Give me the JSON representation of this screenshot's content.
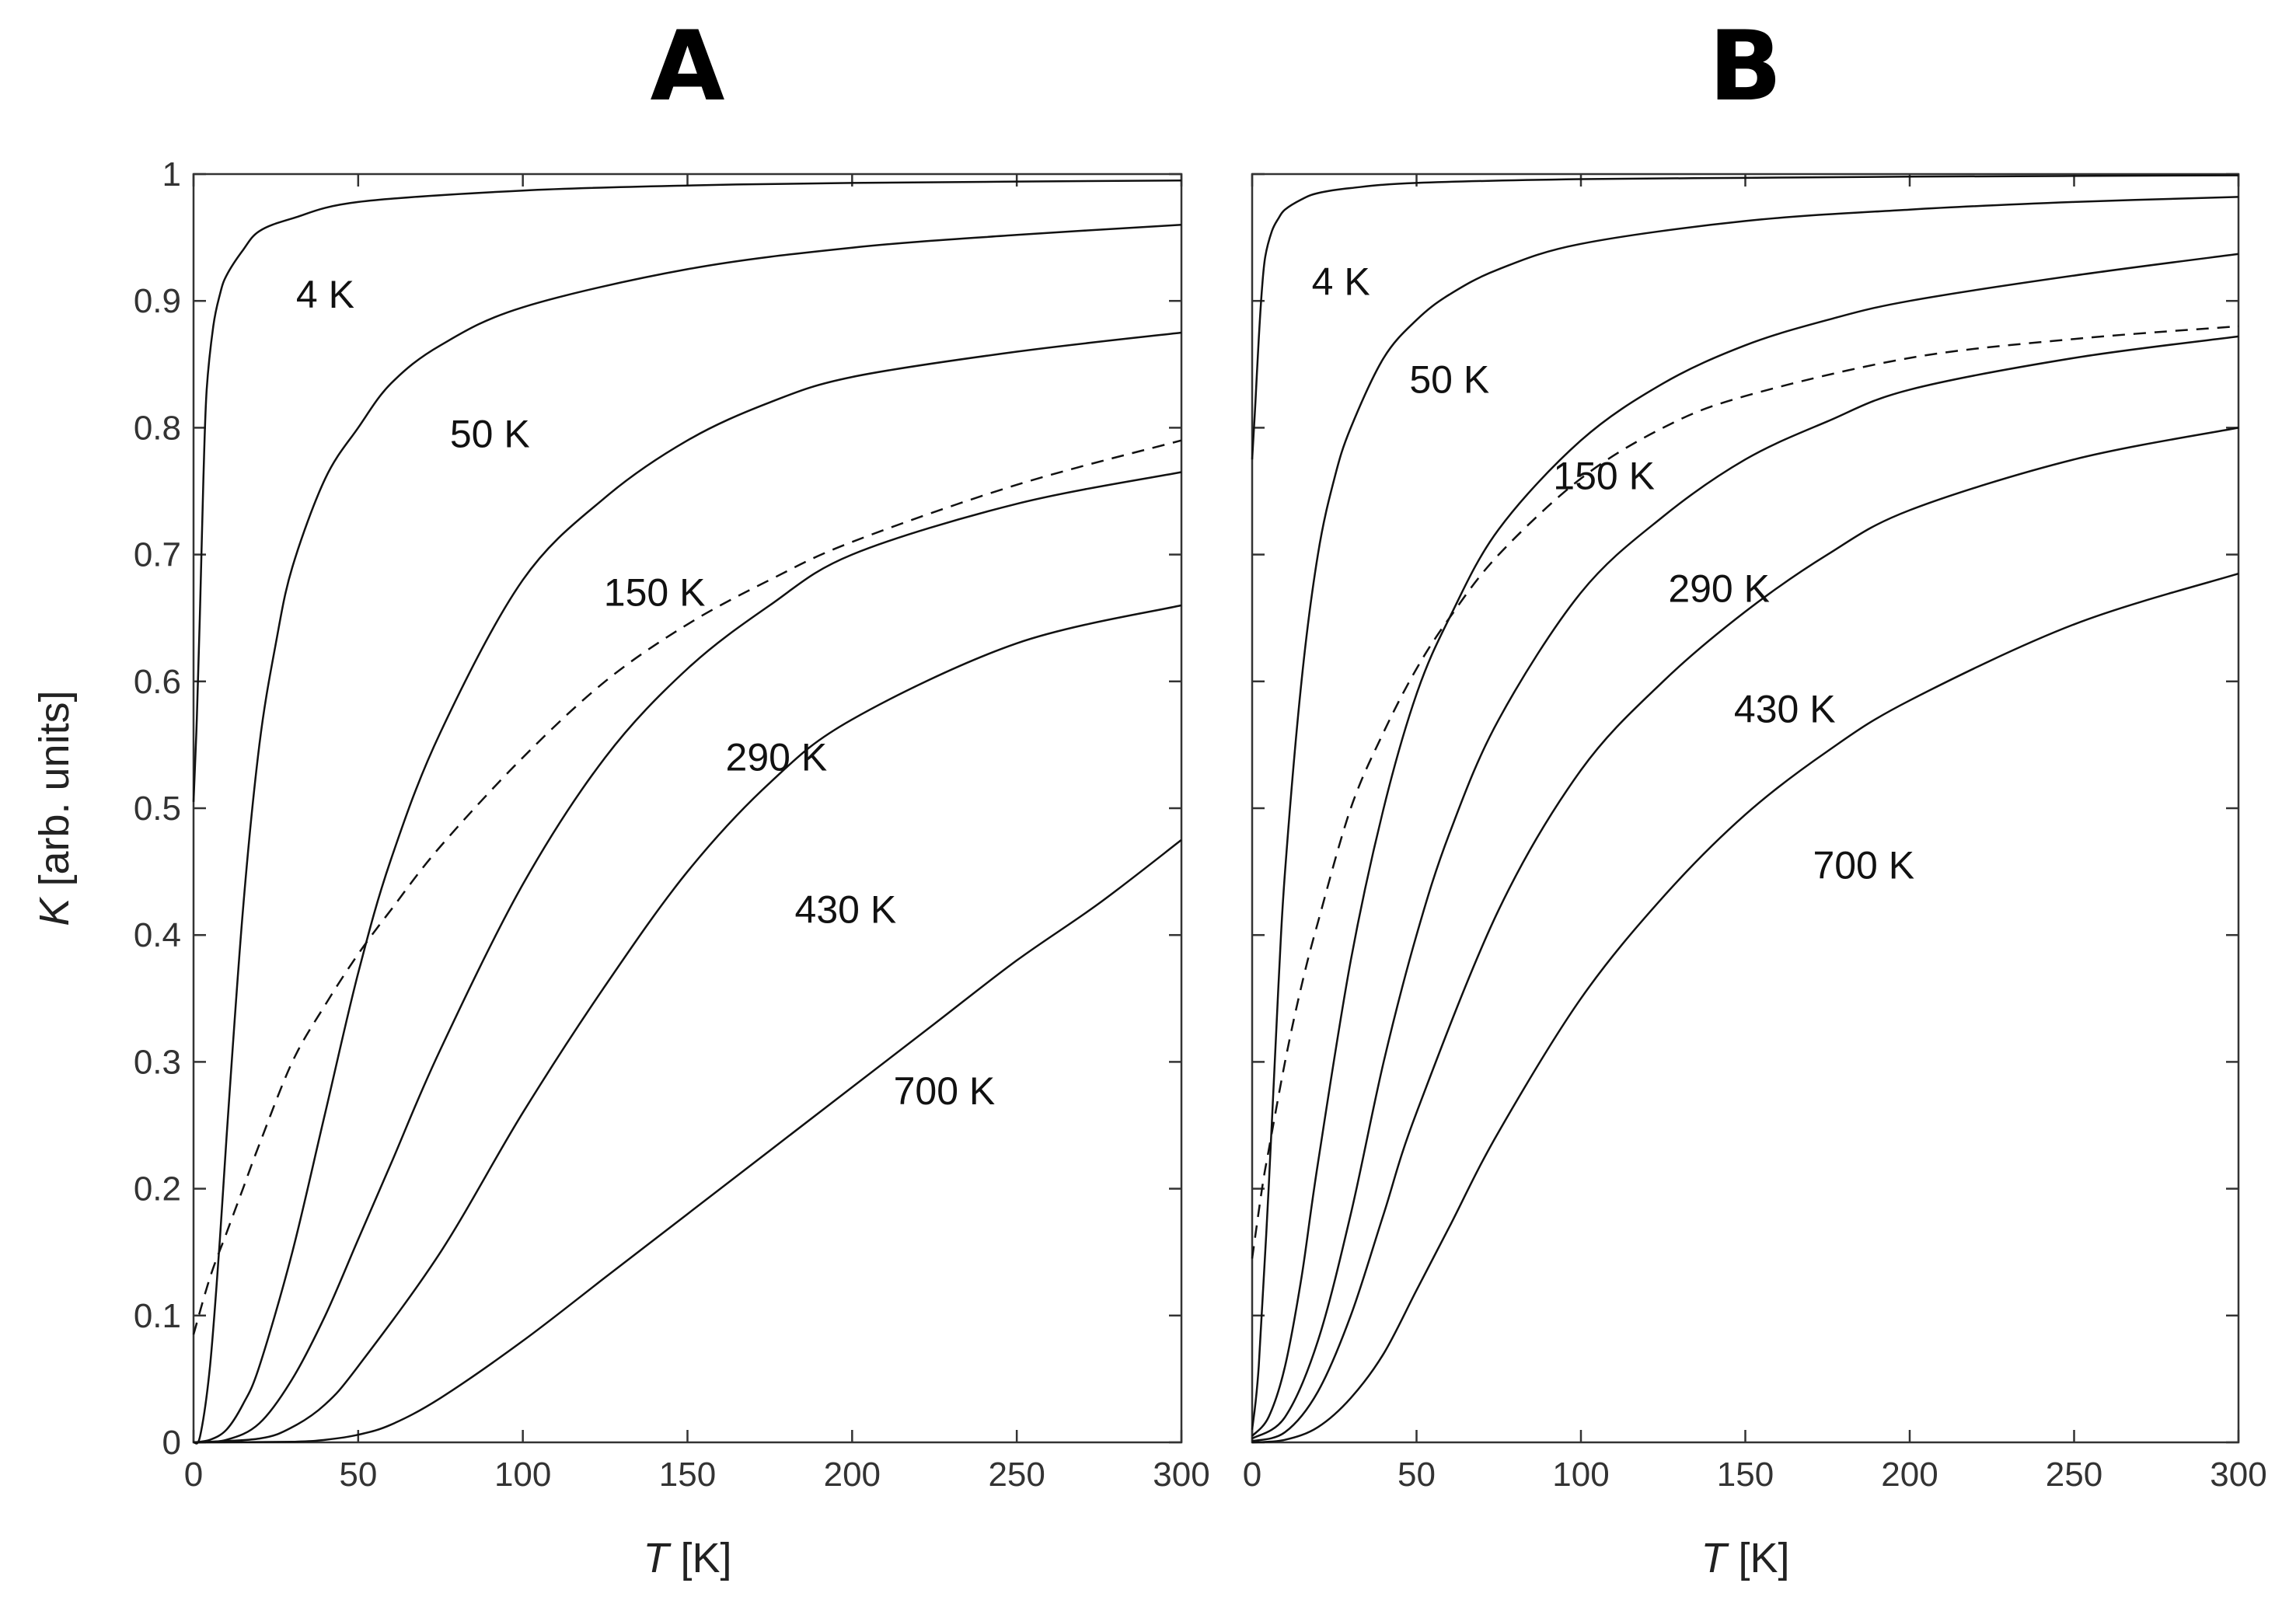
{
  "chart_data": [
    {
      "type": "line",
      "title": "A",
      "xlabel": {
        "var": "T",
        "unit": "[K]"
      },
      "ylabel": {
        "var": "K",
        "unit": "[arb. units]"
      },
      "xlim": [
        0,
        300
      ],
      "ylim": [
        0,
        1
      ],
      "xticks": [
        0,
        50,
        100,
        150,
        200,
        250,
        300
      ],
      "yticks": [
        0,
        0.1,
        0.2,
        0.3,
        0.4,
        0.5,
        0.6,
        0.7,
        0.8,
        0.9,
        1
      ],
      "ytick_labels": [
        "0",
        "0.1",
        "0.2",
        "0.3",
        "0.4",
        "0.5",
        "0.6",
        "0.7",
        "0.8",
        "0.9",
        "1"
      ],
      "series": [
        {
          "name": "4 K",
          "label_at": [
            40,
            0.905
          ],
          "x": [
            0,
            1,
            2,
            3,
            4,
            6,
            8,
            10,
            15,
            20,
            30,
            50,
            100,
            150,
            200,
            300
          ],
          "y": [
            0.505,
            0.57,
            0.66,
            0.76,
            0.83,
            0.88,
            0.905,
            0.92,
            0.94,
            0.955,
            0.965,
            0.978,
            0.987,
            0.991,
            0.993,
            0.995
          ]
        },
        {
          "name": "50 K",
          "label_at": [
            90,
            0.795
          ],
          "x": [
            0,
            2,
            5,
            8,
            10,
            15,
            20,
            25,
            30,
            40,
            50,
            60,
            75,
            100,
            150,
            200,
            250,
            300
          ],
          "y": [
            0,
            0.005,
            0.06,
            0.16,
            0.24,
            0.42,
            0.55,
            0.63,
            0.69,
            0.76,
            0.8,
            0.835,
            0.865,
            0.895,
            0.925,
            0.942,
            0.952,
            0.96
          ]
        },
        {
          "name": "150 K",
          "label_at": [
            140,
            0.67
          ],
          "x": [
            0,
            5,
            10,
            15,
            20,
            30,
            40,
            50,
            60,
            75,
            100,
            125,
            150,
            175,
            200,
            250,
            300
          ],
          "y": [
            0,
            0.002,
            0.01,
            0.03,
            0.06,
            0.15,
            0.26,
            0.37,
            0.46,
            0.56,
            0.68,
            0.745,
            0.79,
            0.82,
            0.84,
            0.86,
            0.875
          ]
        },
        {
          "name": "290 K",
          "label_at": [
            177,
            0.54
          ],
          "x": [
            0,
            10,
            20,
            30,
            40,
            50,
            60,
            75,
            100,
            125,
            150,
            175,
            200,
            250,
            300
          ],
          "y": [
            0,
            0.002,
            0.015,
            0.05,
            0.1,
            0.16,
            0.22,
            0.31,
            0.44,
            0.54,
            0.61,
            0.66,
            0.7,
            0.74,
            0.765
          ]
        },
        {
          "name": "430 K",
          "label_at": [
            198,
            0.42
          ],
          "x": [
            0,
            20,
            30,
            40,
            50,
            75,
            100,
            125,
            150,
            175,
            200,
            250,
            300
          ],
          "y": [
            0,
            0.003,
            0.012,
            0.03,
            0.06,
            0.15,
            0.26,
            0.36,
            0.45,
            0.52,
            0.57,
            0.63,
            0.66
          ]
        },
        {
          "name": "700 K",
          "label_at": [
            228,
            0.277
          ],
          "x": [
            0,
            30,
            40,
            50,
            60,
            75,
            100,
            125,
            150,
            175,
            200,
            225,
            250,
            275,
            300
          ],
          "y": [
            0,
            0.0005,
            0.002,
            0.006,
            0.014,
            0.035,
            0.08,
            0.13,
            0.18,
            0.23,
            0.28,
            0.33,
            0.38,
            0.425,
            0.475
          ]
        },
        {
          "name": "",
          "dashed": true,
          "x": [
            0,
            5,
            10,
            15,
            20,
            30,
            40,
            50,
            60,
            75,
            100,
            125,
            150,
            175,
            200,
            250,
            300
          ],
          "y": [
            0.085,
            0.13,
            0.165,
            0.2,
            0.235,
            0.3,
            0.345,
            0.385,
            0.42,
            0.47,
            0.54,
            0.6,
            0.645,
            0.68,
            0.71,
            0.755,
            0.79
          ]
        }
      ]
    },
    {
      "type": "line",
      "title": "B",
      "xlabel": {
        "var": "T",
        "unit": "[K]"
      },
      "ylabel": null,
      "xlim": [
        0,
        300
      ],
      "ylim": [
        0,
        1
      ],
      "xticks": [
        0,
        50,
        100,
        150,
        200,
        250,
        300
      ],
      "yticks": [
        0,
        0.1,
        0.2,
        0.3,
        0.4,
        0.5,
        0.6,
        0.7,
        0.8,
        0.9,
        1
      ],
      "ytick_labels": null,
      "series": [
        {
          "name": "4 K",
          "label_at": [
            27,
            0.915
          ],
          "x": [
            0,
            1,
            2,
            3,
            4,
            6,
            8,
            10,
            15,
            20,
            30,
            50,
            100,
            150,
            200,
            300
          ],
          "y": [
            0.775,
            0.82,
            0.87,
            0.91,
            0.935,
            0.955,
            0.965,
            0.972,
            0.98,
            0.985,
            0.989,
            0.993,
            0.996,
            0.997,
            0.998,
            0.999
          ]
        },
        {
          "name": "50 K",
          "label_at": [
            60,
            0.838
          ],
          "x": [
            0,
            2,
            5,
            8,
            10,
            15,
            20,
            25,
            30,
            40,
            50,
            60,
            75,
            100,
            150,
            200,
            250,
            300
          ],
          "y": [
            0.01,
            0.06,
            0.2,
            0.36,
            0.45,
            0.6,
            0.7,
            0.76,
            0.8,
            0.855,
            0.885,
            0.905,
            0.925,
            0.945,
            0.963,
            0.972,
            0.978,
            0.982
          ]
        },
        {
          "name": "150 K",
          "label_at": [
            107,
            0.762
          ],
          "x": [
            0,
            5,
            10,
            15,
            20,
            30,
            40,
            50,
            60,
            75,
            100,
            125,
            150,
            175,
            200,
            250,
            300
          ],
          "y": [
            0.005,
            0.02,
            0.06,
            0.13,
            0.22,
            0.38,
            0.5,
            0.59,
            0.65,
            0.72,
            0.79,
            0.835,
            0.865,
            0.885,
            0.9,
            0.92,
            0.937
          ]
        },
        {
          "name": "290 K",
          "label_at": [
            142,
            0.673
          ],
          "x": [
            0,
            10,
            20,
            30,
            40,
            50,
            60,
            75,
            100,
            125,
            150,
            175,
            200,
            250,
            300
          ],
          "y": [
            0.003,
            0.02,
            0.08,
            0.18,
            0.3,
            0.4,
            0.48,
            0.57,
            0.67,
            0.73,
            0.775,
            0.805,
            0.83,
            0.855,
            0.872
          ]
        },
        {
          "name": "430 K",
          "label_at": [
            162,
            0.578
          ],
          "x": [
            0,
            10,
            20,
            30,
            40,
            50,
            75,
            100,
            125,
            150,
            175,
            200,
            250,
            300
          ],
          "y": [
            0.001,
            0.008,
            0.04,
            0.1,
            0.18,
            0.26,
            0.42,
            0.53,
            0.6,
            0.655,
            0.7,
            0.735,
            0.775,
            0.8
          ]
        },
        {
          "name": "700 K",
          "label_at": [
            186,
            0.455
          ],
          "x": [
            0,
            10,
            20,
            30,
            40,
            50,
            60,
            75,
            100,
            125,
            150,
            175,
            200,
            250,
            300
          ],
          "y": [
            0,
            0.002,
            0.012,
            0.035,
            0.07,
            0.12,
            0.17,
            0.245,
            0.35,
            0.43,
            0.495,
            0.545,
            0.585,
            0.645,
            0.685
          ]
        },
        {
          "name": "",
          "dashed": true,
          "x": [
            0,
            3,
            5,
            10,
            15,
            20,
            30,
            40,
            50,
            60,
            75,
            100,
            125,
            150,
            200,
            250,
            300
          ],
          "y": [
            0.145,
            0.2,
            0.23,
            0.3,
            0.36,
            0.41,
            0.5,
            0.56,
            0.61,
            0.65,
            0.7,
            0.76,
            0.8,
            0.825,
            0.855,
            0.87,
            0.88
          ]
        }
      ]
    }
  ]
}
